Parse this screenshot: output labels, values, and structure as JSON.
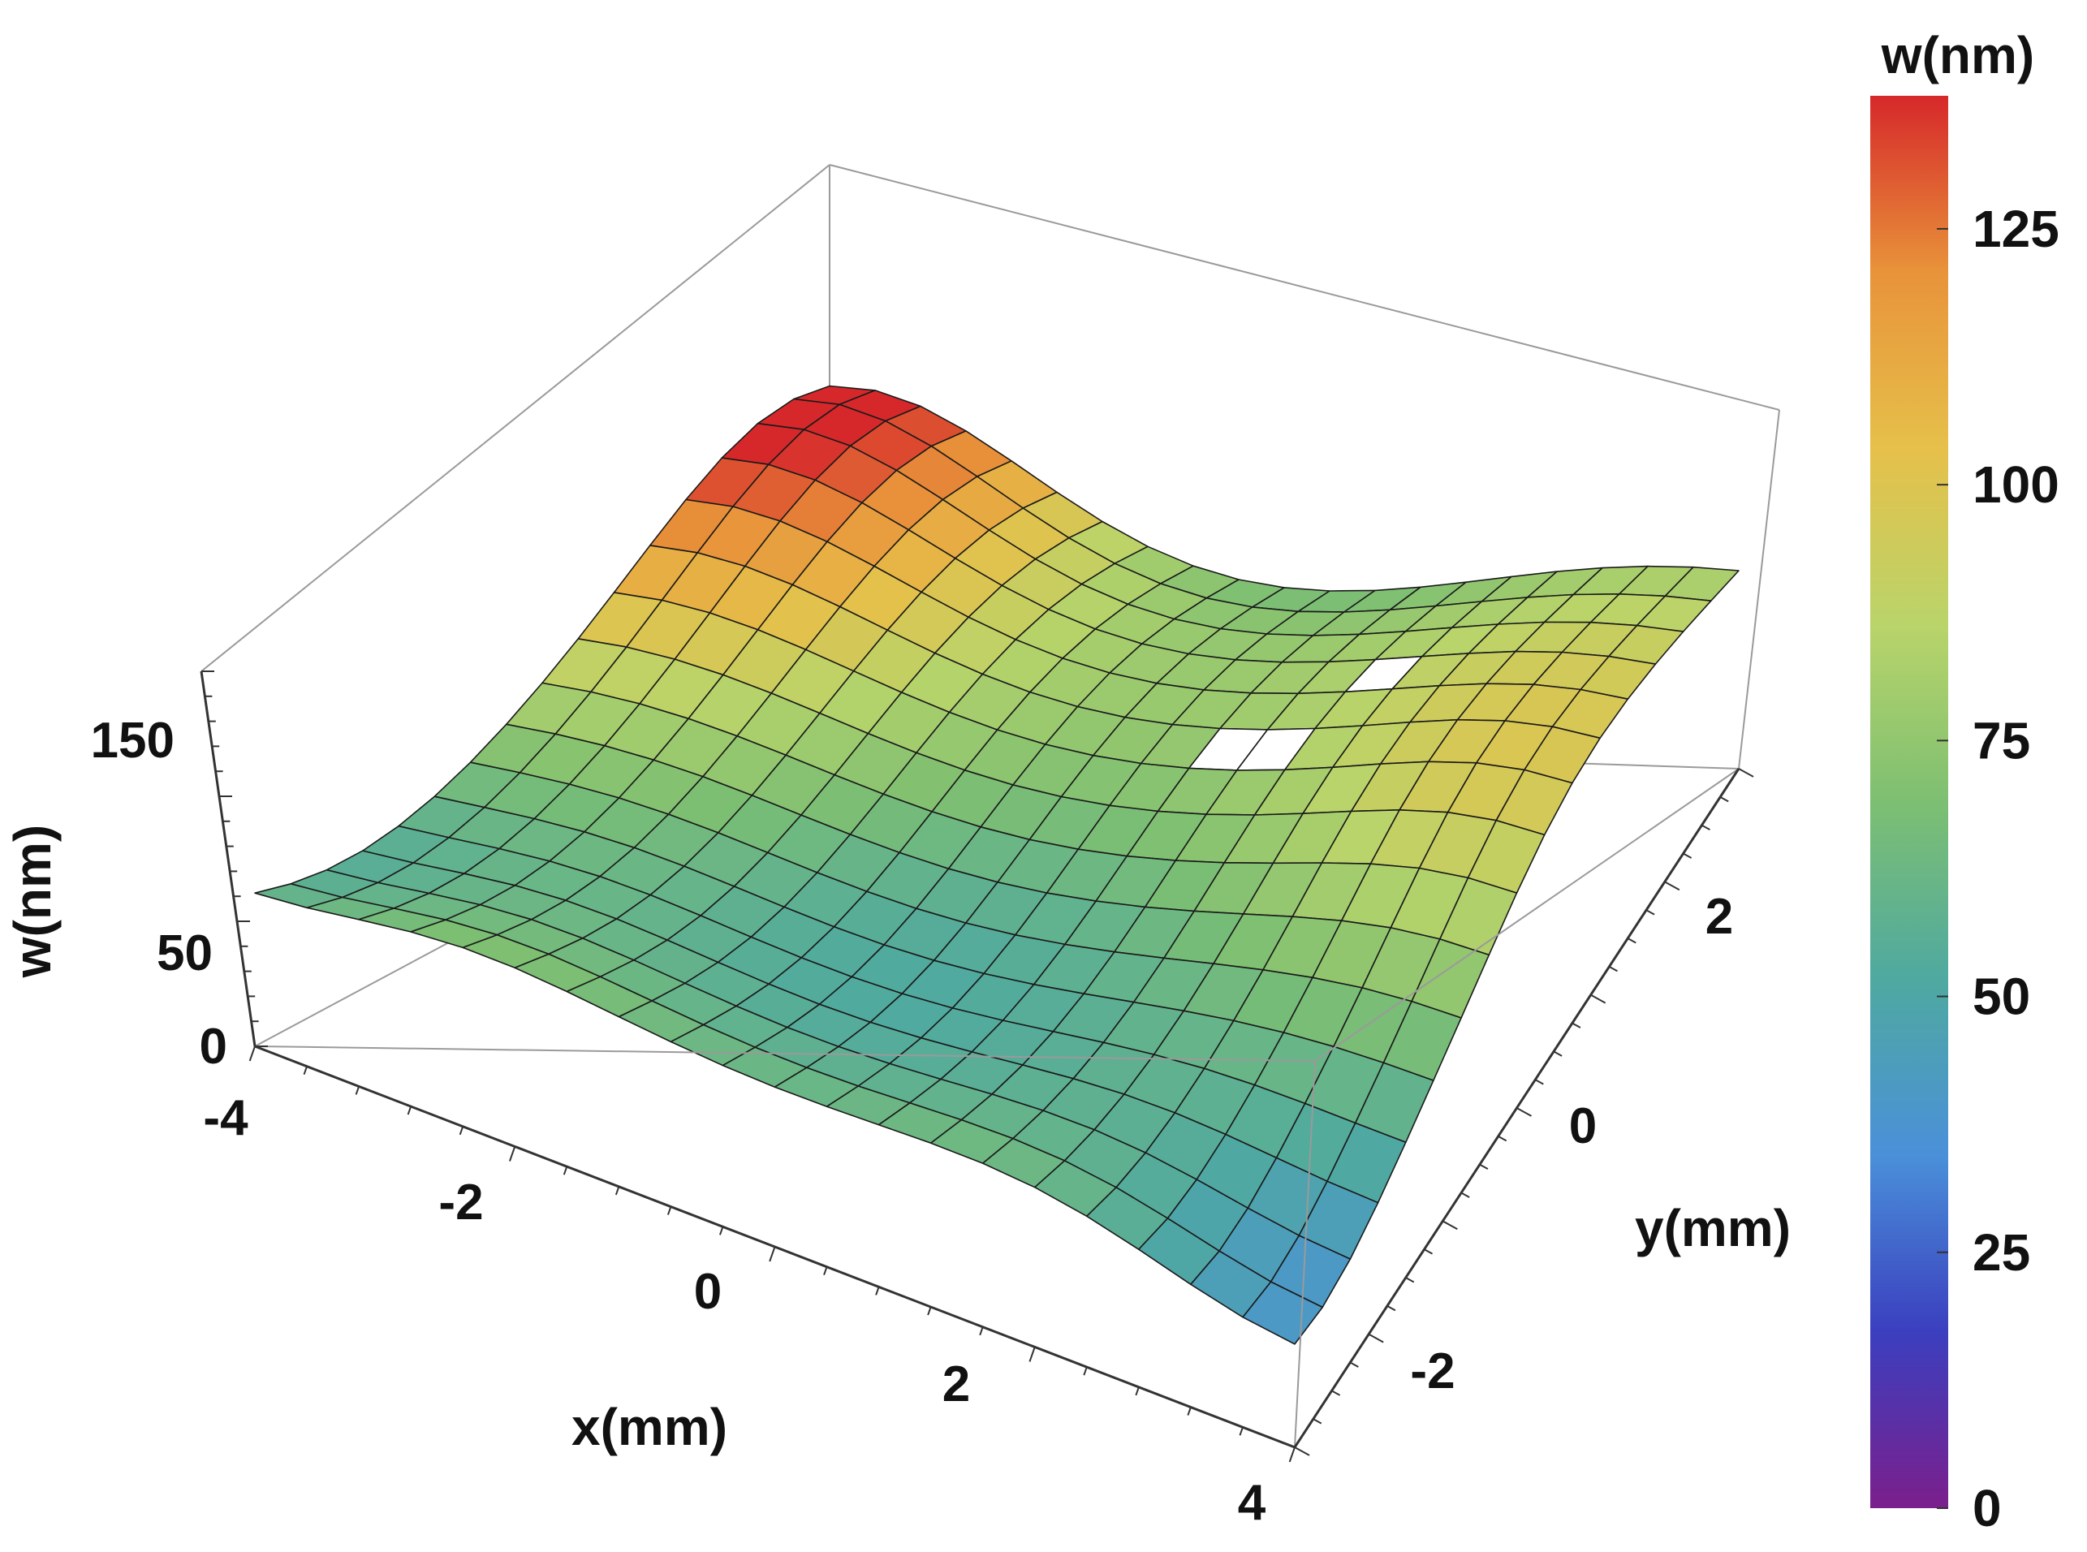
{
  "chart_data": {
    "type": "surface3d",
    "x_axis": {
      "label": "x(mm)",
      "ticks": [
        -4,
        -2,
        0,
        2,
        4
      ],
      "range": [
        -4,
        4
      ]
    },
    "y_axis": {
      "label": "y(mm)",
      "ticks": [
        -2,
        0,
        2
      ],
      "range": [
        -3,
        3
      ]
    },
    "z_axis": {
      "label": "w(nm)",
      "ticks": [
        0,
        50,
        150
      ],
      "range": [
        0,
        150
      ]
    },
    "colorbar": {
      "title": "w(nm)",
      "range": [
        0,
        138
      ],
      "ticks": [
        0,
        25,
        50,
        75,
        100,
        125
      ],
      "colormap": [
        "#7b1f8c",
        "#3b3fbf",
        "#4a90d9",
        "#4fa9a0",
        "#7dbf72",
        "#b9d46a",
        "#e6c04a",
        "#e8933a",
        "#d6282a"
      ]
    },
    "surface_features": {
      "peak": {
        "x": -4,
        "y": 3,
        "w": 138
      },
      "minimum": {
        "x": 4,
        "y": -3,
        "w": 35
      },
      "holes": [
        {
          "x": 1.1,
          "y": 0.9
        },
        {
          "x": 1.9,
          "y": 1.6
        }
      ]
    },
    "mesh": {
      "nx": 20,
      "ny": 16
    }
  },
  "labels": {
    "x_axis_title": "x(mm)",
    "y_axis_title": "y(mm)",
    "z_axis_title": "w(nm)",
    "colorbar_title": "w(nm)",
    "x_ticks": [
      "-4",
      "-2",
      "0",
      "2",
      "4"
    ],
    "y_ticks": [
      "-2",
      "0",
      "2"
    ],
    "z_ticks": [
      "150",
      "50",
      "0"
    ],
    "cb_ticks": [
      "0",
      "25",
      "50",
      "75",
      "100",
      "125"
    ]
  }
}
